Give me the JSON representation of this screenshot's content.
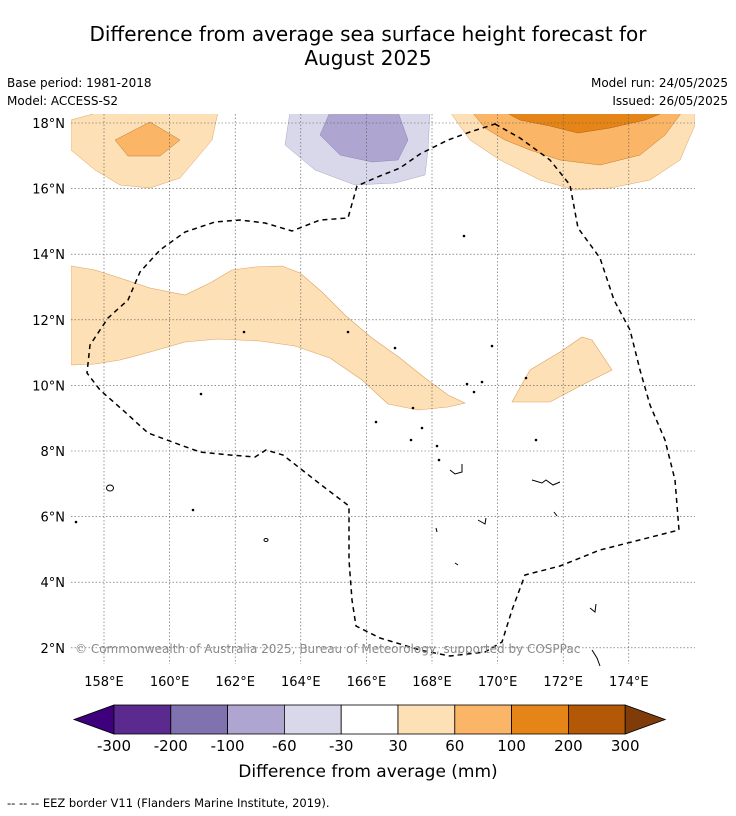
{
  "title_line1": "Difference from average sea surface height forecast for",
  "title_line2": "August 2025",
  "meta": {
    "base_period": "Base period: 1981-2018",
    "model": "Model: ACCESS-S2",
    "model_run": "Model run: 24/05/2025",
    "issued": "Issued: 26/05/2025"
  },
  "map": {
    "lon_ticks": [
      "158°E",
      "160°E",
      "162°E",
      "164°E",
      "166°E",
      "168°E",
      "170°E",
      "172°E",
      "174°E"
    ],
    "lat_ticks": [
      "18°N",
      "16°N",
      "14°N",
      "12°N",
      "10°N",
      "8°N",
      "6°N",
      "4°N",
      "2°N"
    ],
    "copyright": "© Commonwealth of Australia 2025, Bureau of Meteorology, supported by COSPPac"
  },
  "colorbar": {
    "ticks": [
      "-300",
      "-200",
      "-100",
      "-60",
      "-30",
      "30",
      "60",
      "100",
      "200",
      "300"
    ],
    "colors": [
      "#3f007d",
      "#5b2a8f",
      "#8072ae",
      "#aea6d0",
      "#d9d8ea",
      "#ffffff",
      "#fde0b5",
      "#fbb566",
      "#e58518",
      "#b35807",
      "#7f3b08"
    ],
    "label": "Difference from average (mm)"
  },
  "footnote": "--  --  -- EEZ border V11 (Flanders Marine Institute, 2019)."
}
